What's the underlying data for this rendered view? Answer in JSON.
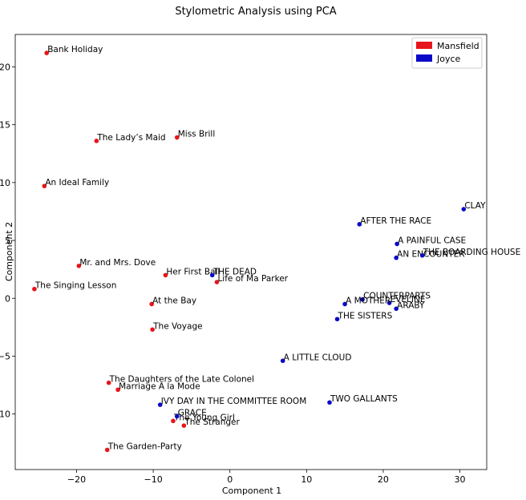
{
  "chart_data": {
    "type": "scatter",
    "title": "Stylometric Analysis using PCA",
    "xlabel": "Component 1",
    "ylabel": "Component 2",
    "xlim": [
      -28,
      33.5
    ],
    "ylim": [
      -14.8,
      22.8
    ],
    "xticks": [
      -20,
      -10,
      0,
      10,
      20,
      30
    ],
    "yticks": [
      -10,
      -5,
      0,
      5,
      10,
      15,
      20
    ],
    "grid": false,
    "legend_position": "upper right",
    "series": [
      {
        "name": "Mansfield",
        "color": "#e8141b",
        "points": [
          {
            "label": "Bank Holiday",
            "x": -23.9,
            "y": 21.2
          },
          {
            "label": "The Lady’s Maid",
            "x": -17.4,
            "y": 13.6
          },
          {
            "label": "Miss Brill",
            "x": -6.9,
            "y": 13.9
          },
          {
            "label": "An Ideal Family",
            "x": -24.2,
            "y": 9.7
          },
          {
            "label": "Mr. and Mrs. Dove",
            "x": -19.7,
            "y": 2.8
          },
          {
            "label": "The Singing Lesson",
            "x": -25.5,
            "y": 0.8
          },
          {
            "label": "Her First Ball",
            "x": -8.4,
            "y": 2.0
          },
          {
            "label": "Life of Ma Parker",
            "x": -1.7,
            "y": 1.4
          },
          {
            "label": "At the Bay",
            "x": -10.2,
            "y": -0.5
          },
          {
            "label": "The Voyage",
            "x": -10.1,
            "y": -2.7
          },
          {
            "label": "The Daughters of the Late Colonel",
            "x": -15.8,
            "y": -7.3
          },
          {
            "label": "Marriage A  la Mode",
            "x": -14.6,
            "y": -7.9
          },
          {
            "label": "The Young Girl",
            "x": -7.4,
            "y": -10.6
          },
          {
            "label": "The Stranger",
            "x": -6.0,
            "y": -11.0
          },
          {
            "label": "The Garden-Party",
            "x": -16.0,
            "y": -13.1
          }
        ]
      },
      {
        "name": "Joyce",
        "color": "#0a0ac8",
        "points": [
          {
            "label": "CLAY",
            "x": 30.5,
            "y": 7.7
          },
          {
            "label": "AFTER THE RACE",
            "x": 16.9,
            "y": 6.4
          },
          {
            "label": "A PAINFUL CASE",
            "x": 21.8,
            "y": 4.7
          },
          {
            "label": "AN ENCOUNTER",
            "x": 21.7,
            "y": 3.5
          },
          {
            "label": "THE BOARDING HOUSE",
            "x": 25.1,
            "y": 3.7
          },
          {
            "label": "THE DEAD",
            "x": -2.3,
            "y": 2.0
          },
          {
            "label": "COUNTERPARTS",
            "x": 17.3,
            "y": -0.1
          },
          {
            "label": "EVELINE",
            "x": 20.8,
            "y": -0.4
          },
          {
            "label": "A MOTHER",
            "x": 15.0,
            "y": -0.5
          },
          {
            "label": "ARABY",
            "x": 21.7,
            "y": -0.9
          },
          {
            "label": "THE SISTERS",
            "x": 14.0,
            "y": -1.8
          },
          {
            "label": "A LITTLE CLOUD",
            "x": 6.9,
            "y": -5.4
          },
          {
            "label": "TWO GALLANTS",
            "x": 13.0,
            "y": -9.0
          },
          {
            "label": "IVY DAY IN THE COMMITTEE ROOM",
            "x": -9.1,
            "y": -9.2
          },
          {
            "label": "GRACE",
            "x": -6.9,
            "y": -10.2
          }
        ]
      }
    ]
  }
}
